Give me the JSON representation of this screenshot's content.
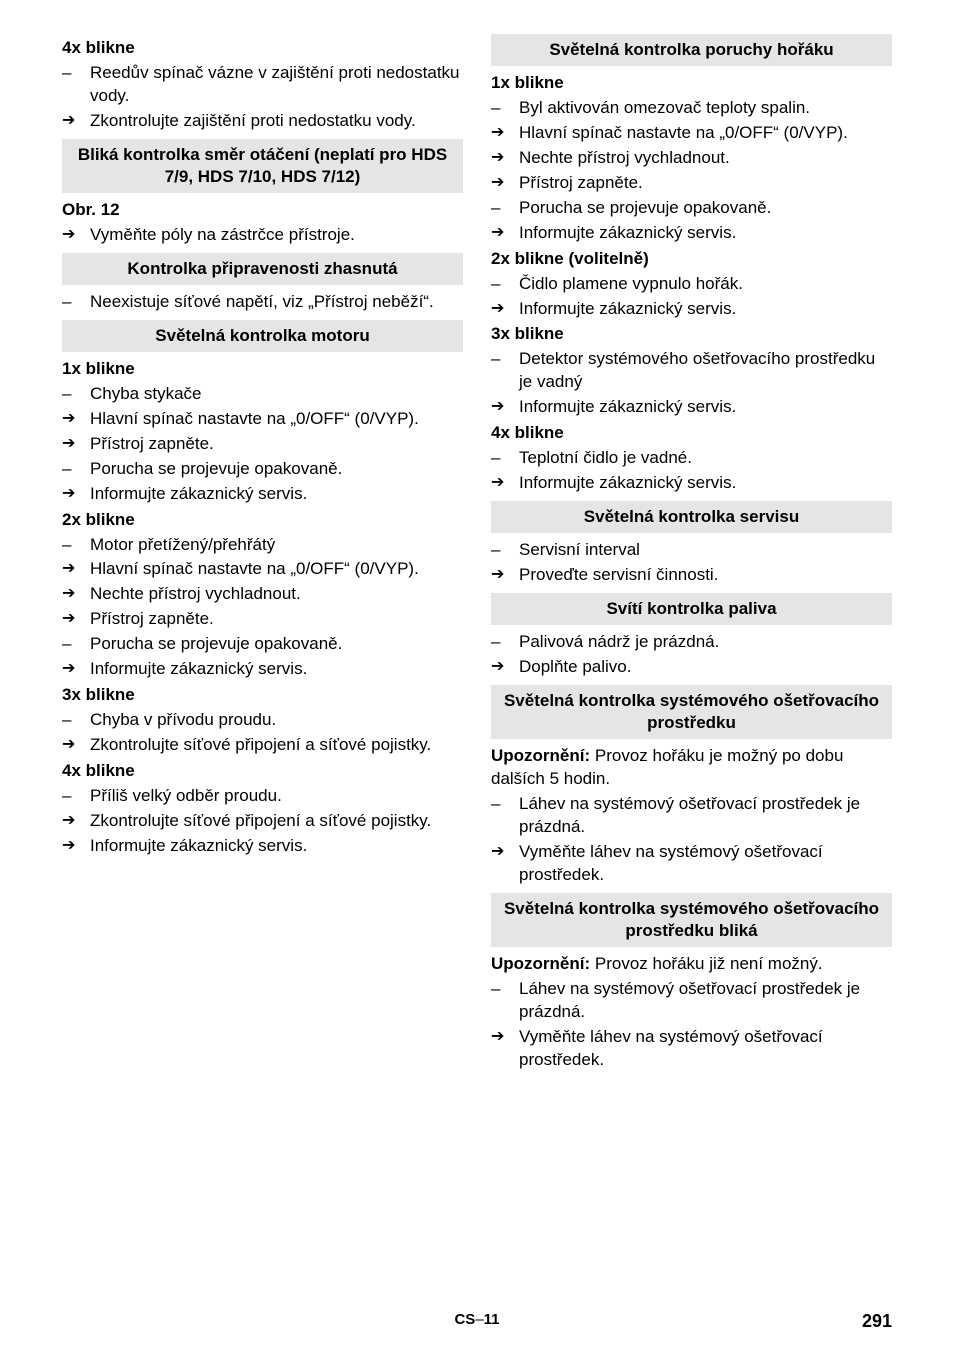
{
  "left": {
    "s1_title": "4x blikne",
    "s1_items": [
      {
        "t": "dash",
        "text": "Reedův spínač vázne v zajištění proti nedostatku vody."
      },
      {
        "t": "arrow",
        "text": "Zkontrolujte zajištění proti nedostatku vody."
      }
    ],
    "h1": "Bliká kontrolka směr otáčení (neplatí pro HDS 7/9, HDS 7/10, HDS 7/12)",
    "s2_title": "Obr. 12",
    "s2_items": [
      {
        "t": "arrow",
        "text": "Vyměňte póly na zástrčce přístroje."
      }
    ],
    "h2": "Kontrolka připravenosti zhasnutá",
    "s3_items": [
      {
        "t": "dash",
        "text": "Neexistuje síťové napětí, viz „Přístroj neběží“."
      }
    ],
    "h3": "Světelná kontrolka motoru",
    "s4_title": "1x blikne",
    "s4_items": [
      {
        "t": "dash",
        "text": "Chyba stykače"
      },
      {
        "t": "arrow",
        "text": "Hlavní spínač nastavte na „0/OFF“ (0/VYP)."
      },
      {
        "t": "arrow",
        "text": "Přístroj zapněte."
      },
      {
        "t": "dash",
        "text": "Porucha se projevuje opakovaně."
      },
      {
        "t": "arrow",
        "text": "Informujte zákaznický servis."
      }
    ],
    "s5_title": "2x blikne",
    "s5_items": [
      {
        "t": "dash",
        "text": "Motor přetížený/přehřátý"
      },
      {
        "t": "arrow",
        "text": "Hlavní spínač nastavte na „0/OFF“ (0/VYP)."
      },
      {
        "t": "arrow",
        "text": "Nechte přístroj vychladnout."
      },
      {
        "t": "arrow",
        "text": "Přístroj zapněte."
      },
      {
        "t": "dash",
        "text": "Porucha se projevuje opakovaně."
      },
      {
        "t": "arrow",
        "text": "Informujte zákaznický servis."
      }
    ],
    "s6_title": "3x blikne",
    "s6_items": [
      {
        "t": "dash",
        "text": "Chyba v přívodu proudu."
      },
      {
        "t": "arrow",
        "text": "Zkontrolujte síťové připojení a síťové pojistky."
      }
    ],
    "s7_title": "4x blikne",
    "s7_items": [
      {
        "t": "dash",
        "text": "Příliš velký odběr proudu."
      },
      {
        "t": "arrow",
        "text": "Zkontrolujte síťové připojení a síťové pojistky."
      },
      {
        "t": "arrow",
        "text": "Informujte zákaznický servis."
      }
    ]
  },
  "right": {
    "h1": "Světelná kontrolka poruchy hořáku",
    "s1_title": "1x blikne",
    "s1_items": [
      {
        "t": "dash",
        "text": "Byl aktivován omezovač teploty spalin."
      },
      {
        "t": "arrow",
        "text": "Hlavní spínač nastavte na „0/OFF“ (0/VYP)."
      },
      {
        "t": "arrow",
        "text": "Nechte přístroj vychladnout."
      },
      {
        "t": "arrow",
        "text": "Přístroj zapněte."
      },
      {
        "t": "dash",
        "text": "Porucha se projevuje opakovaně."
      },
      {
        "t": "arrow",
        "text": "Informujte zákaznický servis."
      }
    ],
    "s2_title": "2x blikne (volitelně)",
    "s2_items": [
      {
        "t": "dash",
        "text": "Čidlo plamene vypnulo hořák."
      },
      {
        "t": "arrow",
        "text": "Informujte zákaznický servis."
      }
    ],
    "s3_title": "3x blikne",
    "s3_items": [
      {
        "t": "dash",
        "text": "Detektor systémového ošetřovacího prostředku je vadný"
      },
      {
        "t": "arrow",
        "text": "Informujte zákaznický servis."
      }
    ],
    "s4_title": "4x blikne",
    "s4_items": [
      {
        "t": "dash",
        "text": "Teplotní čidlo je vadné."
      },
      {
        "t": "arrow",
        "text": "Informujte zákaznický servis."
      }
    ],
    "h2": "Světelná kontrolka servisu",
    "s5_items": [
      {
        "t": "dash",
        "text": "Servisní interval"
      },
      {
        "t": "arrow",
        "text": "Proveďte servisní činnosti."
      }
    ],
    "h3": "Svítí kontrolka paliva",
    "s6_items": [
      {
        "t": "dash",
        "text": "Palivová nádrž je prázdná."
      },
      {
        "t": "arrow",
        "text": "Doplňte palivo."
      }
    ],
    "h4": "Světelná kontrolka systémového ošetřovacího prostředku",
    "p1_bold": "Upozornění:",
    "p1_rest": " Provoz hořáku je možný po dobu dalších 5 hodin.",
    "s7_items": [
      {
        "t": "dash",
        "text": "Láhev na systémový ošetřovací prostředek je prázdná."
      },
      {
        "t": "arrow",
        "text": "Vyměňte láhev na systémový ošetřovací prostředek."
      }
    ],
    "h5": "Světelná kontrolka systémového ošetřovacího prostředku bliká",
    "p2_bold": "Upozornění:",
    "p2_rest": " Provoz hořáku již není možný.",
    "s8_items": [
      {
        "t": "dash",
        "text": "Láhev na systémový ošetřovací prostředek je prázdná."
      },
      {
        "t": "arrow",
        "text": "Vyměňte láhev na systémový ošetřovací prostředek."
      }
    ]
  },
  "footer": {
    "lang": "CS",
    "sep": " – ",
    "section_page": "11",
    "page_number": "291"
  }
}
